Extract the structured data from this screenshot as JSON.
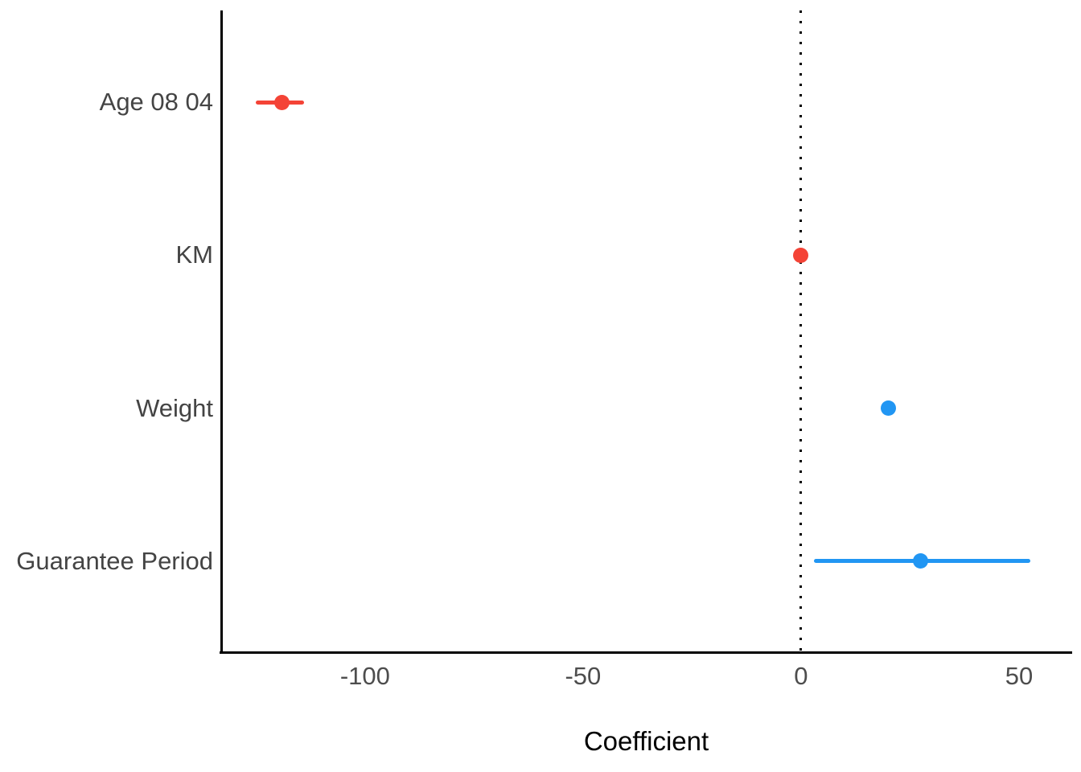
{
  "figure": {
    "background": "#ffffff"
  },
  "chart_data": {
    "type": "scatter",
    "subtype": "dot-whisker-coefficient-plot",
    "title": "",
    "xlabel": "Coefficient",
    "ylabel": "",
    "xlim": [
      -133,
      62
    ],
    "x_ticks": [
      -100,
      -50,
      0,
      50
    ],
    "x_tick_labels": [
      "-100",
      "-50",
      "0",
      "50"
    ],
    "reference_line_x": 0,
    "grid": false,
    "legend": false,
    "categories": [
      "Age 08 04",
      "KM",
      "Weight",
      "Guarantee Period"
    ],
    "points": [
      {
        "label": "Age 08 04",
        "value": -119,
        "ci_low": -125,
        "ci_high": -114,
        "sign": "negative",
        "color": "#f44336"
      },
      {
        "label": "KM",
        "value": -0.02,
        "ci_low": -0.02,
        "ci_high": -0.02,
        "sign": "negative",
        "color": "#f44336"
      },
      {
        "label": "Weight",
        "value": 20,
        "ci_low": 20,
        "ci_high": 20,
        "sign": "positive",
        "color": "#2196f3"
      },
      {
        "label": "Guarantee Period",
        "value": 27.5,
        "ci_low": 3,
        "ci_high": 52.5,
        "sign": "positive",
        "color": "#2196f3"
      }
    ],
    "colors": {
      "negative": "#f44336",
      "positive": "#2196f3",
      "axis_line": "#000000",
      "reference_line": "#000000",
      "axis_text": "#4d4d4d",
      "category_text": "#444444",
      "axis_title": "#000000",
      "background": "#ffffff"
    }
  }
}
